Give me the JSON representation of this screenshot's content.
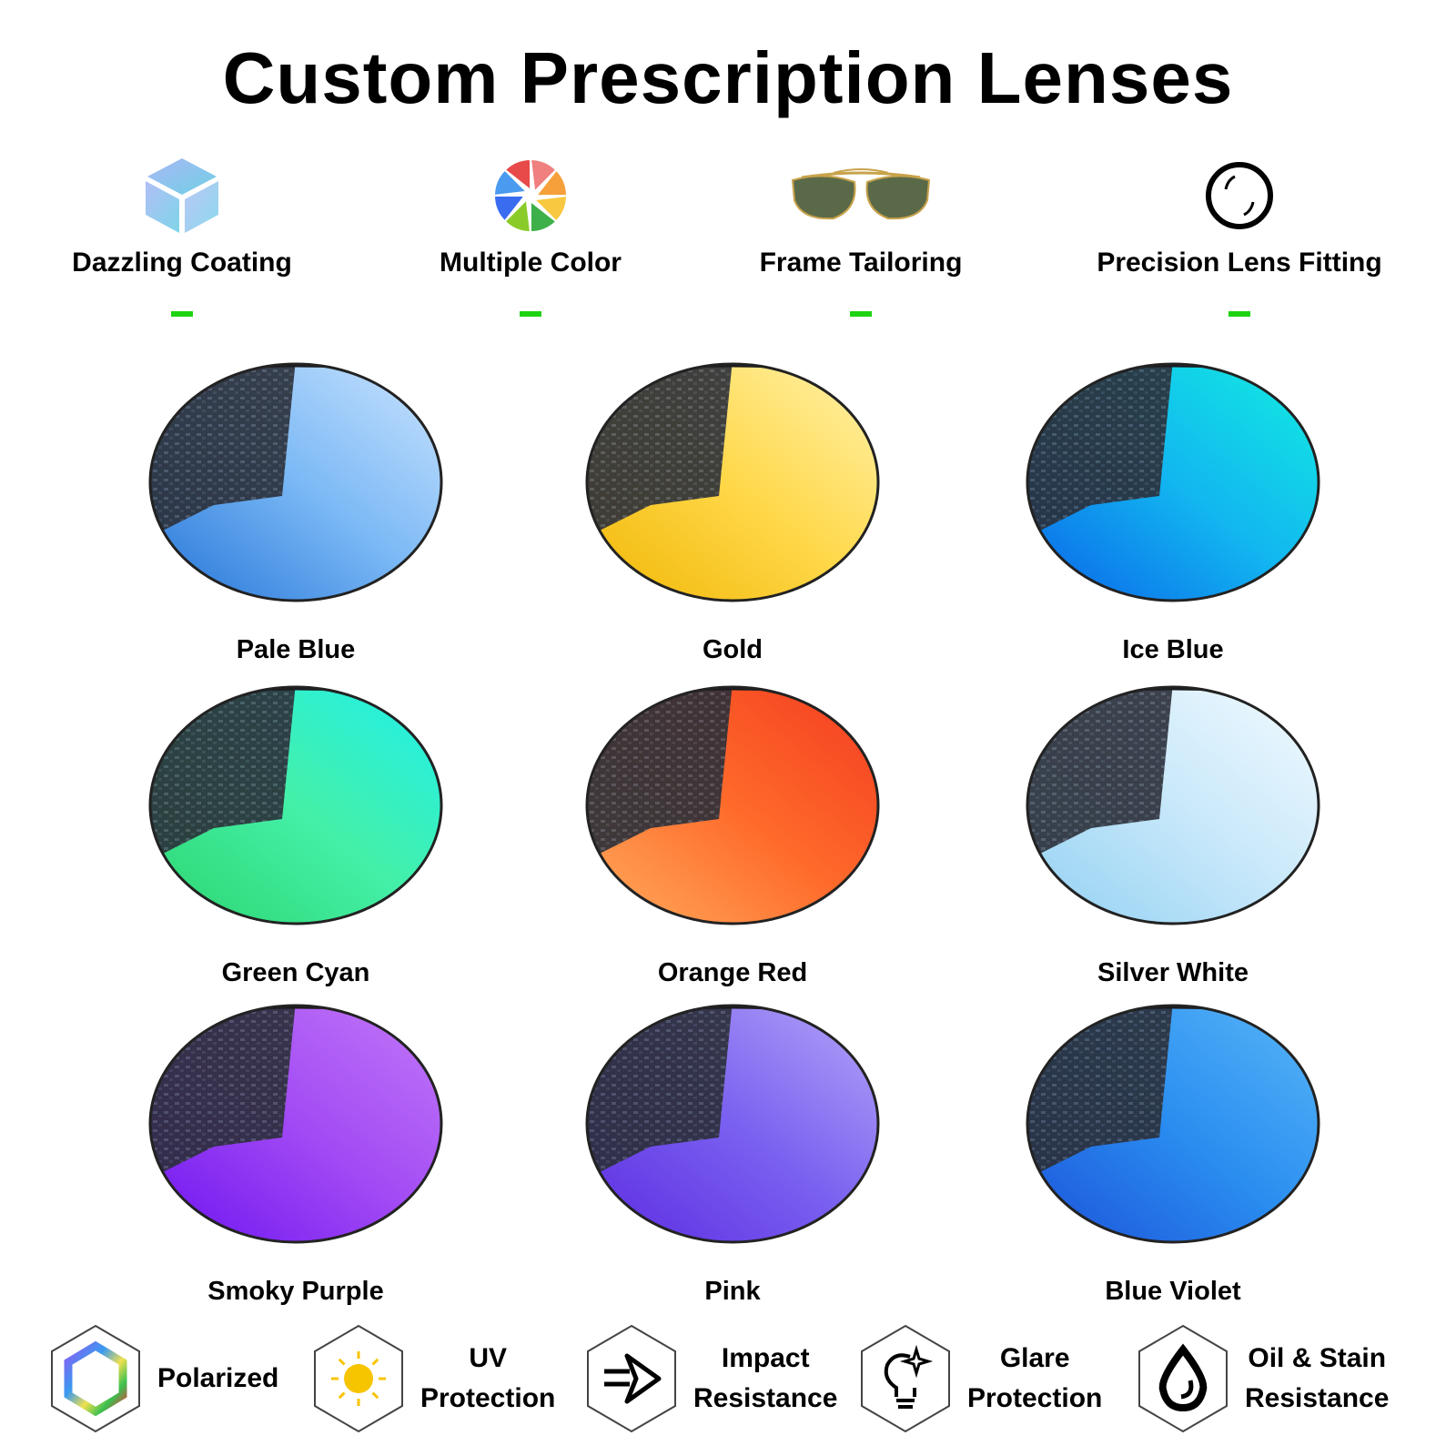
{
  "title": "Custom Prescription Lenses",
  "features": [
    {
      "label": "Dazzling Coating",
      "icon": "cube-icon"
    },
    {
      "label": "Multiple Color",
      "icon": "color-wheel-icon"
    },
    {
      "label": "Frame Tailoring",
      "icon": "sunglasses-icon"
    },
    {
      "label": "Precision Lens Fitting",
      "icon": "lens-ring-icon"
    }
  ],
  "accent_color": "#1ed312",
  "lenses": [
    {
      "label": "Pale Blue",
      "colors": [
        "#1e6fd6",
        "#7ab8f5",
        "#cfe6ff"
      ]
    },
    {
      "label": "Gold",
      "colors": [
        "#f0b400",
        "#ffd84a",
        "#fff3b0"
      ]
    },
    {
      "label": "Ice Blue",
      "colors": [
        "#0a5ee8",
        "#12b6f0",
        "#12f0e0"
      ]
    },
    {
      "label": "Green Cyan",
      "colors": [
        "#2bd36a",
        "#44f0a8",
        "#1ef0f0"
      ]
    },
    {
      "label": "Orange Red",
      "colors": [
        "#ffb060",
        "#ff6a2a",
        "#f23a20"
      ]
    },
    {
      "label": "Silver White",
      "colors": [
        "#8ecff2",
        "#c8e8fa",
        "#f4fbff"
      ]
    },
    {
      "label": "Smoky Purple",
      "colors": [
        "#6a10f0",
        "#a24af4",
        "#c37af8"
      ]
    },
    {
      "label": "Pink",
      "colors": [
        "#5a28e0",
        "#7a60f0",
        "#b8a8f8"
      ]
    },
    {
      "label": "Blue Violet",
      "colors": [
        "#1c4ed8",
        "#2a8ef0",
        "#5ab8f8"
      ]
    }
  ],
  "benefits": [
    {
      "lines": [
        "Polarized"
      ],
      "icon": "rainbow-hexagon-icon"
    },
    {
      "lines": [
        "UV",
        "Protection"
      ],
      "icon": "sun-icon"
    },
    {
      "lines": [
        "Impact",
        "Resistance"
      ],
      "icon": "impact-arrow-icon"
    },
    {
      "lines": [
        "Glare",
        "Protection"
      ],
      "icon": "lightbulb-sparkle-icon"
    },
    {
      "lines": [
        "Oil & Stain",
        "Resistance"
      ],
      "icon": "drop-icon"
    }
  ]
}
